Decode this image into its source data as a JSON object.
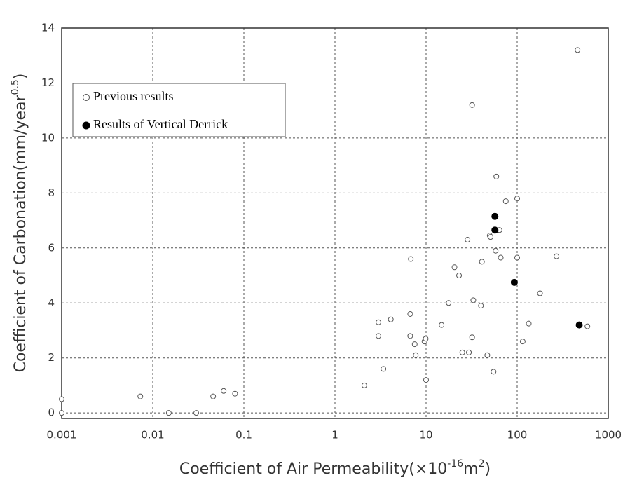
{
  "chart_data": {
    "type": "scatter",
    "x_label": [
      {
        "text": "Coefficient of Air Permeability(×10"
      },
      {
        "text": "-16",
        "sup": true
      },
      {
        "text": "m"
      },
      {
        "text": "2",
        "sup": true
      },
      {
        "text": ")"
      }
    ],
    "y_label": [
      {
        "text": "Coefficient of Carbonation(mm/year"
      },
      {
        "text": "0.5",
        "sup": true
      },
      {
        "text": ")"
      }
    ],
    "xscale": "log",
    "xlim": [
      0.001,
      1000
    ],
    "xticks": [
      0.001,
      0.01,
      0.1,
      1,
      10,
      100,
      1000
    ],
    "ylim": [
      -0.2,
      14
    ],
    "yticks": [
      0,
      2,
      4,
      6,
      8,
      10,
      12,
      14
    ],
    "grid": true,
    "legend": "upper left",
    "series": [
      {
        "name": "Previous results",
        "color": "#555555",
        "filled": false,
        "x": [
          0.001,
          0.001,
          0.0073,
          0.015,
          0.03,
          0.046,
          0.06,
          0.08,
          2.1,
          3.0,
          3.0,
          3.4,
          4.1,
          6.8,
          6.7,
          6.7,
          7.5,
          7.7,
          9.6,
          9.9,
          10,
          14.8,
          17.7,
          20.5,
          23,
          25,
          28.5,
          29.5,
          32,
          32,
          33,
          40,
          41,
          47,
          50,
          51,
          55,
          58,
          59,
          64,
          66,
          75,
          100,
          100,
          115,
          134,
          178,
          270,
          460,
          590
        ],
        "values": [
          0.5,
          0,
          0.6,
          0,
          0,
          0.6,
          0.8,
          0.7,
          1.0,
          3.3,
          2.8,
          1.6,
          3.4,
          5.6,
          3.6,
          2.8,
          2.5,
          2.1,
          2.6,
          2.7,
          1.2,
          3.2,
          4.0,
          5.3,
          5.0,
          2.2,
          6.3,
          2.2,
          11.2,
          2.75,
          4.1,
          3.9,
          5.5,
          2.1,
          6.45,
          6.4,
          1.5,
          5.9,
          8.6,
          6.65,
          5.65,
          7.7,
          5.65,
          7.8,
          2.6,
          3.25,
          4.35,
          5.7,
          13.2,
          3.15
        ]
      },
      {
        "name": "Results of Vertical Derrick",
        "color": "#000000",
        "filled": true,
        "x": [
          57,
          57,
          93,
          480
        ],
        "values": [
          7.15,
          6.65,
          4.75,
          3.2
        ]
      }
    ]
  }
}
